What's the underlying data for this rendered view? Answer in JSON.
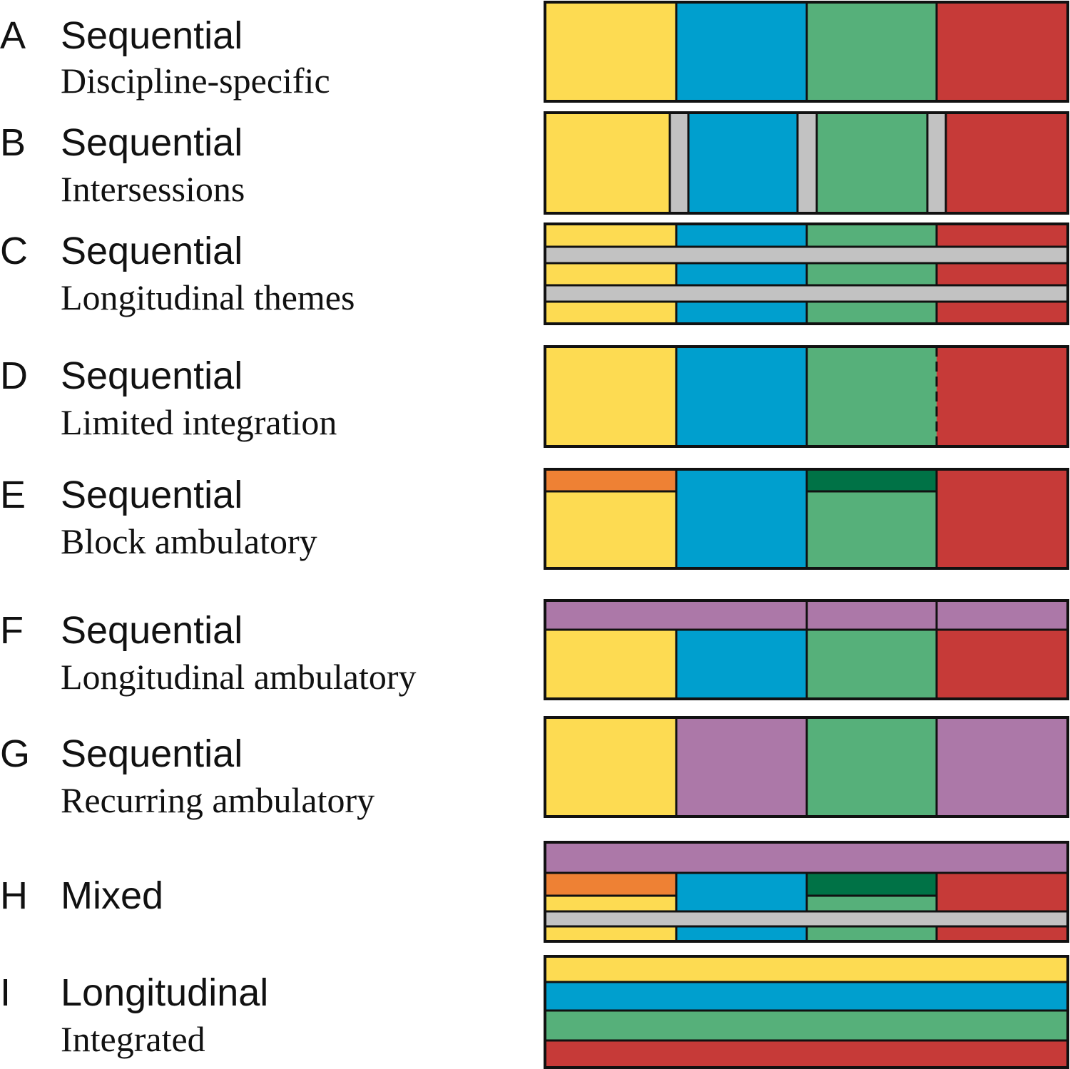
{
  "colors": {
    "yellow": "#FDDB52",
    "blue": "#009FCE",
    "green": "#56B07A",
    "red": "#C63A38",
    "gray": "#C2C2C2",
    "purple": "#AC78A8",
    "orange": "#EE8134",
    "darkgreen": "#007246"
  },
  "rows": [
    {
      "letter": "A",
      "title": "Sequential",
      "subtitle": "Discipline-specific"
    },
    {
      "letter": "B",
      "title": "Sequential",
      "subtitle": "Intersessions"
    },
    {
      "letter": "C",
      "title": "Sequential",
      "subtitle": "Longitudinal themes"
    },
    {
      "letter": "D",
      "title": "Sequential",
      "subtitle": "Limited integration"
    },
    {
      "letter": "E",
      "title": "Sequential",
      "subtitle": "Block ambulatory"
    },
    {
      "letter": "F",
      "title": "Sequential",
      "subtitle": "Longitudinal ambulatory"
    },
    {
      "letter": "G",
      "title": "Sequential",
      "subtitle": "Recurring ambulatory"
    },
    {
      "letter": "H",
      "title": "Mixed",
      "subtitle": ""
    },
    {
      "letter": "I",
      "title": "Longitudinal",
      "subtitle": "Integrated"
    }
  ]
}
